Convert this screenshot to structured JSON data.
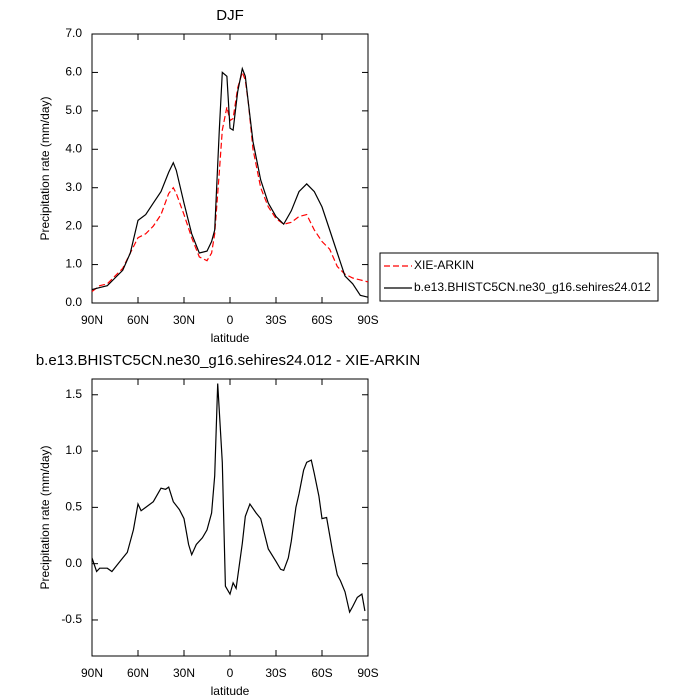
{
  "chart_data": [
    {
      "type": "line",
      "title": "DJF",
      "xlabel": "latitude",
      "ylabel": "Precipitation rate (mm/day)",
      "x": [
        90,
        85,
        80,
        75,
        70,
        65,
        60,
        55,
        50,
        45,
        40,
        37,
        35,
        30,
        25,
        20,
        15,
        12,
        10,
        7,
        5,
        2,
        0,
        -2,
        -5,
        -8,
        -10,
        -12,
        -15,
        -20,
        -25,
        -30,
        -35,
        -40,
        -45,
        -50,
        -55,
        -60,
        -65,
        -70,
        -75,
        -80,
        -85,
        -90
      ],
      "series": [
        {
          "name": "XIE-ARKIN",
          "color": "#ff0000",
          "dashed": true,
          "values": [
            0.3,
            0.45,
            0.5,
            0.7,
            0.9,
            1.3,
            1.7,
            1.8,
            2.0,
            2.3,
            2.85,
            3.0,
            2.85,
            2.3,
            1.7,
            1.2,
            1.1,
            1.3,
            1.8,
            3.4,
            4.5,
            5.1,
            4.75,
            4.8,
            5.6,
            6.0,
            5.8,
            5.2,
            4.0,
            3.0,
            2.5,
            2.2,
            2.05,
            2.1,
            2.25,
            2.3,
            1.9,
            1.6,
            1.4,
            0.95,
            0.75,
            0.65,
            0.6,
            0.55
          ]
        },
        {
          "name": "b.e13.BHISTC5CN.ne30_g16.sehires24.012",
          "color": "#000000",
          "dashed": false,
          "values": [
            0.35,
            0.4,
            0.45,
            0.65,
            0.85,
            1.3,
            2.15,
            2.3,
            2.6,
            2.9,
            3.4,
            3.65,
            3.45,
            2.6,
            1.8,
            1.3,
            1.35,
            1.6,
            1.9,
            4.5,
            6.0,
            5.9,
            4.55,
            4.5,
            5.5,
            6.1,
            5.9,
            5.2,
            4.2,
            3.2,
            2.6,
            2.25,
            2.05,
            2.4,
            2.9,
            3.1,
            2.9,
            2.5,
            1.9,
            1.3,
            0.7,
            0.5,
            0.2,
            0.15
          ]
        }
      ],
      "xlim": [
        90,
        -90
      ],
      "xticks": [
        {
          "value": 90,
          "label": "90N"
        },
        {
          "value": 60,
          "label": "60N"
        },
        {
          "value": 30,
          "label": "30N"
        },
        0,
        {
          "value": -30,
          "label": "30S"
        },
        {
          "value": -60,
          "label": "60S"
        },
        {
          "value": -90,
          "label": "90S"
        }
      ],
      "ylim": [
        0,
        7
      ],
      "yticks": [
        {
          "value": 0,
          "label": "0.0"
        },
        {
          "value": 1,
          "label": "1.0"
        },
        {
          "value": 2,
          "label": "2.0"
        },
        {
          "value": 3,
          "label": "3.0"
        },
        {
          "value": 4,
          "label": "4.0"
        },
        {
          "value": 5,
          "label": "5.0"
        },
        {
          "value": 6,
          "label": "6.0"
        },
        {
          "value": 7,
          "label": "7.0"
        }
      ],
      "legend": "right"
    },
    {
      "type": "line",
      "title": "b.e13.BHISTC5CN.ne30_g16.sehires24.012 - XIE-ARKIN",
      "xlabel": "latitude",
      "ylabel": "Precipitation rate (mm/day)",
      "x": [
        90,
        87,
        85,
        80,
        77,
        73,
        70,
        67,
        63,
        60,
        58,
        55,
        50,
        45,
        42,
        40,
        37,
        33,
        30,
        27,
        25,
        22,
        18,
        15,
        12,
        10,
        8,
        5,
        3,
        0,
        -2,
        -4,
        -8,
        -10,
        -13,
        -17,
        -20,
        -25,
        -30,
        -33,
        -35,
        -38,
        -40,
        -43,
        -45,
        -48,
        -50,
        -53,
        -55,
        -58,
        -60,
        -63,
        -67,
        -70,
        -72,
        -75,
        -78,
        -80,
        -83,
        -86,
        -88
      ],
      "values": [
        0.05,
        -0.07,
        -0.04,
        -0.04,
        -0.07,
        0.0,
        0.05,
        0.1,
        0.3,
        0.53,
        0.47,
        0.5,
        0.55,
        0.67,
        0.66,
        0.68,
        0.55,
        0.48,
        0.4,
        0.17,
        0.08,
        0.17,
        0.23,
        0.3,
        0.45,
        0.78,
        1.6,
        0.9,
        -0.2,
        -0.27,
        -0.17,
        -0.22,
        0.18,
        0.42,
        0.53,
        0.45,
        0.4,
        0.13,
        0.02,
        -0.05,
        -0.06,
        0.05,
        0.2,
        0.5,
        0.62,
        0.83,
        0.9,
        0.92,
        0.8,
        0.6,
        0.4,
        0.41,
        0.1,
        -0.1,
        -0.15,
        -0.25,
        -0.43,
        -0.38,
        -0.3,
        -0.27,
        -0.42
      ],
      "color": "#000000",
      "xlim": [
        90,
        -90
      ],
      "xticks": [
        {
          "value": 90,
          "label": "90N"
        },
        {
          "value": 60,
          "label": "60N"
        },
        {
          "value": 30,
          "label": "30N"
        },
        0,
        {
          "value": -30,
          "label": "30S"
        },
        {
          "value": -60,
          "label": "60S"
        },
        {
          "value": -90,
          "label": "90S"
        }
      ],
      "ylim": [
        -0.82,
        1.64
      ],
      "yticks": [
        -0.5,
        {
          "value": 0,
          "label": "0.0"
        },
        0.5,
        {
          "value": 1,
          "label": "1.0"
        },
        1.5
      ]
    }
  ]
}
